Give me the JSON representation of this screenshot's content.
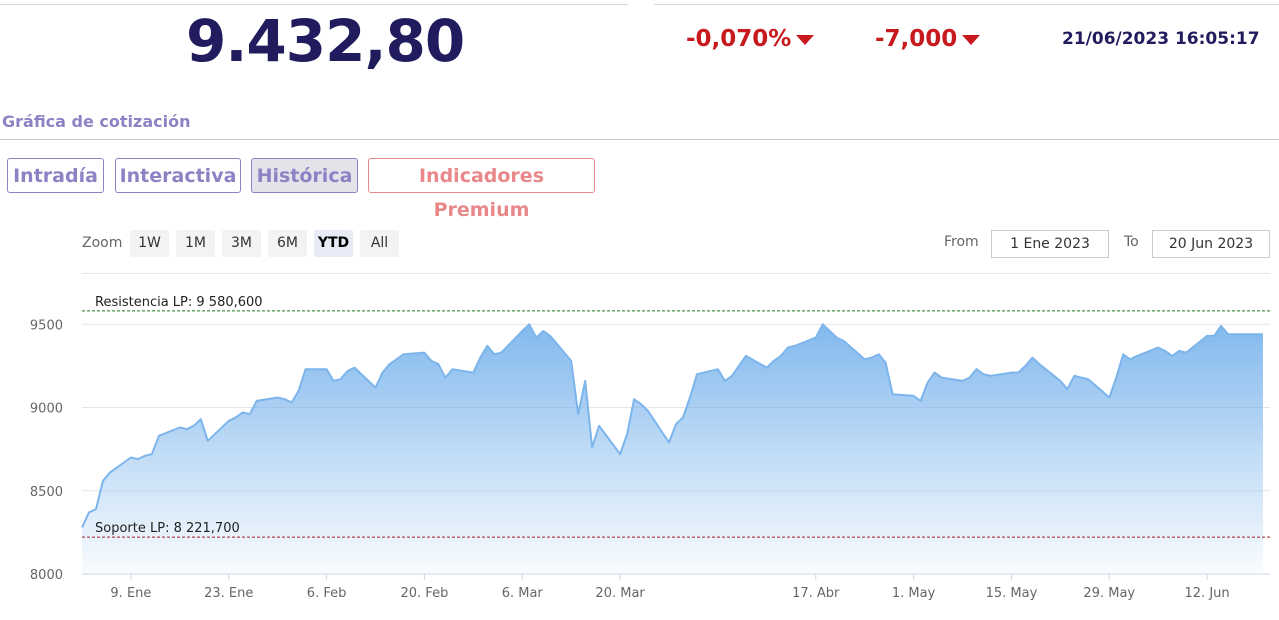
{
  "quote": {
    "price": "9.432,80",
    "change_percent": "-0,070%",
    "change_points": "-7,000",
    "datetime": "21/06/2023 16:05:17"
  },
  "section_title": "Gráfica de cotización",
  "tabs": [
    {
      "label": "Intradía",
      "active": false
    },
    {
      "label": "Interactiva",
      "active": false
    },
    {
      "label": "Histórica",
      "active": true
    },
    {
      "label": "Indicadores Premium",
      "active": false
    }
  ],
  "range_selector": {
    "zoom_label": "Zoom",
    "buttons": [
      "1W",
      "1M",
      "3M",
      "6M",
      "YTD",
      "All"
    ],
    "selected": "YTD",
    "from_label": "From",
    "from_value": "1 Ene 2023",
    "to_label": "To",
    "to_value": "20 Jun 2023"
  },
  "colors": {
    "price": "#211c5e",
    "negative": "#c8191e",
    "tab": "#8c83c4",
    "premium": "#e9888a",
    "series": "#7cb5ec",
    "resistance": "#1e7a1e",
    "support": "#a01c28"
  },
  "chart_data": {
    "type": "area",
    "yaxis": {
      "min": 8000,
      "max": 9700,
      "ticks": [
        8000,
        8500,
        9000,
        9500
      ]
    },
    "xaxis": {
      "range": [
        "2023-01-02",
        "2023-06-21"
      ],
      "ticks": [
        {
          "date": "2023-01-09",
          "label": "9. Ene"
        },
        {
          "date": "2023-01-23",
          "label": "23. Ene"
        },
        {
          "date": "2023-02-06",
          "label": "6. Feb"
        },
        {
          "date": "2023-02-20",
          "label": "20. Feb"
        },
        {
          "date": "2023-03-06",
          "label": "6. Mar"
        },
        {
          "date": "2023-03-20",
          "label": "20. Mar"
        },
        {
          "date": "2023-04-17",
          "label": "17. Abr"
        },
        {
          "date": "2023-05-01",
          "label": "1. May"
        },
        {
          "date": "2023-05-15",
          "label": "15. May"
        },
        {
          "date": "2023-05-29",
          "label": "29. May"
        },
        {
          "date": "2023-06-12",
          "label": "12. Jun"
        }
      ]
    },
    "levels": [
      {
        "label": "Resistencia LP: 9 580,600",
        "value": 9580.6,
        "color": "#1e7a1e"
      },
      {
        "label": "Soporte LP: 8 221,700",
        "value": 8221.7,
        "color": "#a01c28"
      }
    ],
    "series": [
      {
        "points": [
          [
            "2023-01-02",
            8280
          ],
          [
            "2023-01-03",
            8370
          ],
          [
            "2023-01-04",
            8390
          ],
          [
            "2023-01-05",
            8560
          ],
          [
            "2023-01-06",
            8610
          ],
          [
            "2023-01-09",
            8700
          ],
          [
            "2023-01-10",
            8690
          ],
          [
            "2023-01-11",
            8710
          ],
          [
            "2023-01-12",
            8720
          ],
          [
            "2023-01-13",
            8830
          ],
          [
            "2023-01-16",
            8880
          ],
          [
            "2023-01-17",
            8870
          ],
          [
            "2023-01-18",
            8890
          ],
          [
            "2023-01-19",
            8930
          ],
          [
            "2023-01-20",
            8800
          ],
          [
            "2023-01-23",
            8920
          ],
          [
            "2023-01-24",
            8940
          ],
          [
            "2023-01-25",
            8970
          ],
          [
            "2023-01-26",
            8960
          ],
          [
            "2023-01-27",
            9040
          ],
          [
            "2023-01-30",
            9060
          ],
          [
            "2023-01-31",
            9050
          ],
          [
            "2023-02-01",
            9030
          ],
          [
            "2023-02-02",
            9100
          ],
          [
            "2023-02-03",
            9230
          ],
          [
            "2023-02-06",
            9230
          ],
          [
            "2023-02-07",
            9160
          ],
          [
            "2023-02-08",
            9170
          ],
          [
            "2023-02-09",
            9220
          ],
          [
            "2023-02-10",
            9240
          ],
          [
            "2023-02-13",
            9120
          ],
          [
            "2023-02-14",
            9210
          ],
          [
            "2023-02-15",
            9260
          ],
          [
            "2023-02-16",
            9290
          ],
          [
            "2023-02-17",
            9320
          ],
          [
            "2023-02-20",
            9330
          ],
          [
            "2023-02-21",
            9280
          ],
          [
            "2023-02-22",
            9260
          ],
          [
            "2023-02-23",
            9180
          ],
          [
            "2023-02-24",
            9230
          ],
          [
            "2023-02-27",
            9210
          ],
          [
            "2023-02-28",
            9300
          ],
          [
            "2023-03-01",
            9370
          ],
          [
            "2023-03-02",
            9320
          ],
          [
            "2023-03-03",
            9330
          ],
          [
            "2023-03-06",
            9460
          ],
          [
            "2023-03-07",
            9500
          ],
          [
            "2023-03-08",
            9420
          ],
          [
            "2023-03-09",
            9460
          ],
          [
            "2023-03-10",
            9430
          ],
          [
            "2023-03-13",
            9280
          ],
          [
            "2023-03-14",
            8960
          ],
          [
            "2023-03-15",
            9160
          ],
          [
            "2023-03-16",
            8760
          ],
          [
            "2023-03-17",
            8890
          ],
          [
            "2023-03-20",
            8720
          ],
          [
            "2023-03-21",
            8840
          ],
          [
            "2023-03-22",
            9050
          ],
          [
            "2023-03-23",
            9020
          ],
          [
            "2023-03-24",
            8980
          ],
          [
            "2023-03-27",
            8790
          ],
          [
            "2023-03-28",
            8900
          ],
          [
            "2023-03-29",
            8940
          ],
          [
            "2023-03-30",
            9060
          ],
          [
            "2023-03-31",
            9200
          ],
          [
            "2023-04-03",
            9230
          ],
          [
            "2023-04-04",
            9160
          ],
          [
            "2023-04-05",
            9190
          ],
          [
            "2023-04-06",
            9250
          ],
          [
            "2023-04-07",
            9310
          ],
          [
            "2023-04-10",
            9240
          ],
          [
            "2023-04-11",
            9280
          ],
          [
            "2023-04-12",
            9310
          ],
          [
            "2023-04-13",
            9360
          ],
          [
            "2023-04-14",
            9370
          ],
          [
            "2023-04-17",
            9420
          ],
          [
            "2023-04-18",
            9500
          ],
          [
            "2023-04-19",
            9460
          ],
          [
            "2023-04-20",
            9420
          ],
          [
            "2023-04-21",
            9400
          ],
          [
            "2023-04-24",
            9290
          ],
          [
            "2023-04-25",
            9300
          ],
          [
            "2023-04-26",
            9320
          ],
          [
            "2023-04-27",
            9270
          ],
          [
            "2023-04-28",
            9080
          ],
          [
            "2023-05-01",
            9070
          ],
          [
            "2023-05-02",
            9040
          ],
          [
            "2023-05-03",
            9150
          ],
          [
            "2023-05-04",
            9210
          ],
          [
            "2023-05-05",
            9180
          ],
          [
            "2023-05-08",
            9160
          ],
          [
            "2023-05-09",
            9180
          ],
          [
            "2023-05-10",
            9230
          ],
          [
            "2023-05-11",
            9200
          ],
          [
            "2023-05-12",
            9190
          ],
          [
            "2023-05-15",
            9210
          ],
          [
            "2023-05-16",
            9210
          ],
          [
            "2023-05-17",
            9250
          ],
          [
            "2023-05-18",
            9300
          ],
          [
            "2023-05-19",
            9260
          ],
          [
            "2023-05-22",
            9160
          ],
          [
            "2023-05-23",
            9110
          ],
          [
            "2023-05-24",
            9190
          ],
          [
            "2023-05-25",
            9180
          ],
          [
            "2023-05-26",
            9170
          ],
          [
            "2023-05-29",
            9060
          ],
          [
            "2023-05-30",
            9180
          ],
          [
            "2023-05-31",
            9320
          ],
          [
            "2023-06-01",
            9290
          ],
          [
            "2023-06-02",
            9310
          ],
          [
            "2023-06-05",
            9360
          ],
          [
            "2023-06-06",
            9340
          ],
          [
            "2023-06-07",
            9310
          ],
          [
            "2023-06-08",
            9340
          ],
          [
            "2023-06-09",
            9330
          ],
          [
            "2023-06-12",
            9430
          ],
          [
            "2023-06-13",
            9430
          ],
          [
            "2023-06-14",
            9490
          ],
          [
            "2023-06-15",
            9440
          ],
          [
            "2023-06-16",
            9440
          ],
          [
            "2023-06-20",
            9440
          ]
        ]
      }
    ]
  }
}
